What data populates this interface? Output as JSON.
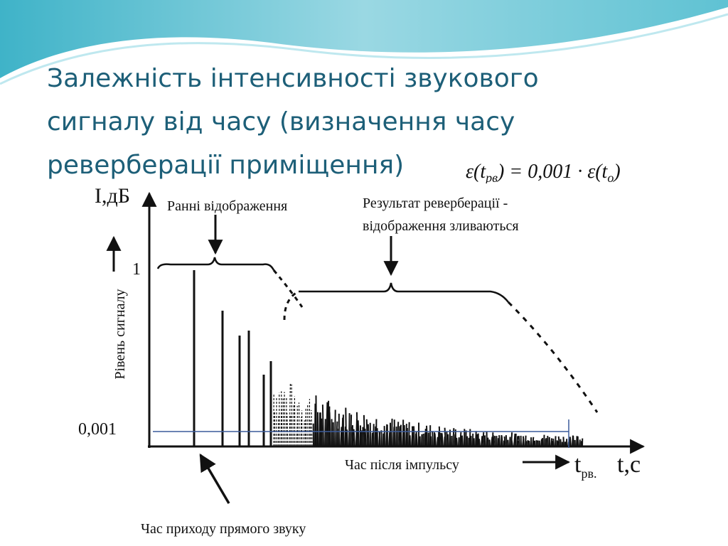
{
  "title": {
    "lines": [
      "Залежність інтенсивності звукового",
      "сигналу від часу (визначення часу",
      "реверберації приміщення)"
    ]
  },
  "formula": {
    "parts": [
      "ε(t",
      "рв",
      ") = 0,001 · ε(t",
      "о",
      ")"
    ]
  },
  "diagram": {
    "y_axis_label": "I,дБ",
    "y_axis_caption": "Рівень сигналу",
    "level_high": "1",
    "level_low": "0,001",
    "early_reflections": "Ранні відображення",
    "reverb_result": [
      "Результат реверберації -",
      "відображення зливаються"
    ],
    "x_axis_caption": "Час після імпульсу",
    "t_rv": {
      "main": "t",
      "sub": "рв."
    },
    "x_axis_label": "t,с",
    "direct_sound": "Час приходу прямого звуку"
  }
}
